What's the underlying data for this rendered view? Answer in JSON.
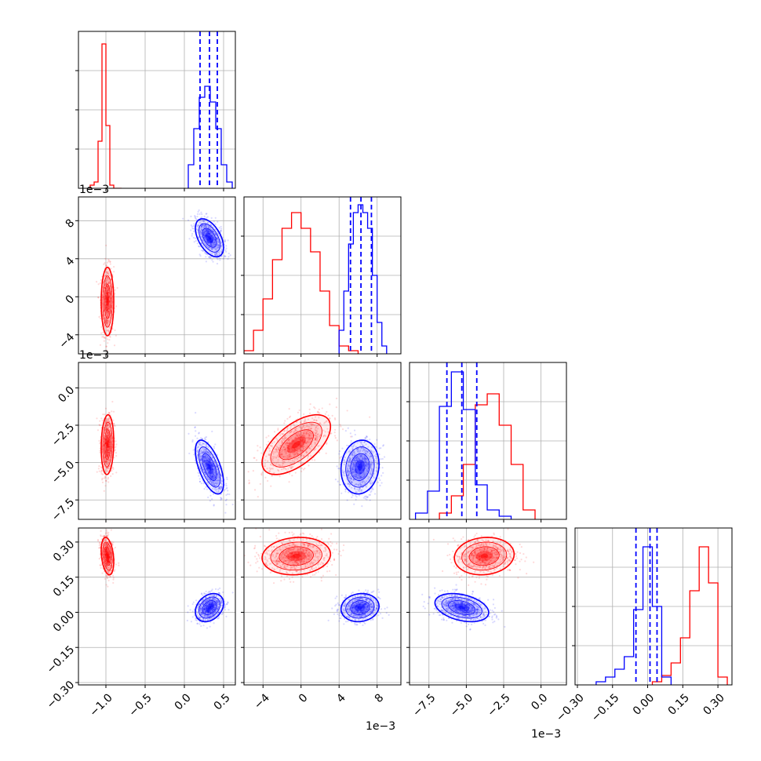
{
  "chart_data": {
    "type": "corner",
    "colors": {
      "series_a": "#ff0000",
      "series_b": "#0000ff",
      "grid": "#b0b0b0"
    },
    "params": [
      {
        "range": [
          -1.35,
          0.65
        ],
        "ticks": [
          -1.0,
          -0.5,
          0.0,
          0.5
        ],
        "tick_labels": [
          "−1.0",
          "−0.5",
          "0.0",
          "0.5"
        ],
        "offset_label": ""
      },
      {
        "range": [
          -6,
          10.5
        ],
        "ticks": [
          -4,
          0,
          4,
          8
        ],
        "tick_labels": [
          "−4",
          "0",
          "4",
          "8"
        ],
        "offset_label": "1e−3"
      },
      {
        "range": [
          -8.8,
          1.7
        ],
        "ticks": [
          -7.5,
          -5.0,
          -2.5,
          0.0
        ],
        "tick_labels": [
          "−7.5",
          "−5.0",
          "−2.5",
          "0.0"
        ],
        "offset_label": "1e−3"
      },
      {
        "range": [
          -0.31,
          0.36
        ],
        "ticks": [
          -0.3,
          -0.15,
          0.0,
          0.15,
          0.3
        ],
        "tick_labels": [
          "−0.30",
          "−0.15",
          "0.00",
          "0.15",
          "0.30"
        ],
        "offset_label": ""
      }
    ],
    "series": [
      {
        "color": "red",
        "mean": [
          -0.98,
          -0.0005,
          -0.0038,
          0.24
        ],
        "sd": [
          0.04,
          0.0018,
          0.001,
          0.04
        ],
        "corr": [
          [
            1,
            0,
            0.1,
            -0.3
          ],
          [
            0,
            1,
            0.6,
            0.1
          ],
          [
            0.1,
            0.6,
            1,
            0.1
          ],
          [
            -0.3,
            0.1,
            0.1,
            1
          ]
        ],
        "hist_1d": [
          {
            "bins": [
              -1.2,
              -1.15,
              -1.1,
              -1.05,
              -1.0,
              -0.95,
              -0.9,
              -0.85,
              -0.8
            ],
            "heights": [
              0.02,
              0.04,
              0.3,
              0.92,
              0.4,
              0.02,
              0.0,
              0.0
            ]
          },
          {
            "bins": [
              -0.006,
              -0.005,
              -0.004,
              -0.003,
              -0.002,
              -0.001,
              0.0,
              0.001,
              0.002,
              0.003,
              0.004,
              0.005,
              0.006
            ],
            "heights": [
              0.02,
              0.15,
              0.35,
              0.6,
              0.8,
              0.9,
              0.8,
              0.65,
              0.4,
              0.18,
              0.05,
              0.02
            ]
          },
          {
            "bins": [
              -0.0068,
              -0.006,
              -0.0052,
              -0.0044,
              -0.0036,
              -0.0028,
              -0.002,
              -0.0012,
              -0.0004
            ],
            "heights": [
              0.04,
              0.15,
              0.35,
              0.73,
              0.8,
              0.6,
              0.35,
              0.06
            ]
          },
          {
            "bins": [
              0.02,
              0.06,
              0.1,
              0.14,
              0.18,
              0.22,
              0.26,
              0.3,
              0.34
            ],
            "heights": [
              0.02,
              0.06,
              0.14,
              0.3,
              0.6,
              0.88,
              0.65,
              0.05
            ]
          }
        ]
      },
      {
        "color": "blue",
        "mean": [
          0.32,
          0.0062,
          -0.0053,
          0.02
        ],
        "sd": [
          0.09,
          0.001,
          0.0009,
          0.03
        ],
        "corr": [
          [
            1,
            -0.5,
            -0.6,
            0.3
          ],
          [
            -0.5,
            1,
            0.1,
            0.1
          ],
          [
            -0.6,
            0.1,
            1,
            -0.35
          ],
          [
            0.3,
            0.1,
            -0.35,
            1
          ]
        ],
        "quantile_lines": [
          [
            0.2,
            0.32,
            0.42
          ],
          [
            0.0052,
            0.0063,
            0.0074
          ],
          [
            -0.0063,
            -0.0053,
            -0.0043
          ],
          [
            -0.05,
            0.01,
            0.04
          ]
        ],
        "hist_1d": [
          {
            "bins": [
              0.05,
              0.12,
              0.19,
              0.26,
              0.33,
              0.4,
              0.47,
              0.54,
              0.61
            ],
            "heights": [
              0.15,
              0.38,
              0.58,
              0.65,
              0.55,
              0.38,
              0.15,
              0.04
            ]
          },
          {
            "bins": [
              0.004,
              0.0045,
              0.005,
              0.0055,
              0.006,
              0.0065,
              0.007,
              0.0075,
              0.008,
              0.0085,
              0.009
            ],
            "heights": [
              0.15,
              0.4,
              0.7,
              0.9,
              0.95,
              0.9,
              0.8,
              0.5,
              0.2,
              0.05
            ]
          },
          {
            "bins": [
              -0.0084,
              -0.0076,
              -0.0068,
              -0.006,
              -0.0052,
              -0.0044,
              -0.0036,
              -0.0028,
              -0.002
            ],
            "heights": [
              0.04,
              0.18,
              0.72,
              0.94,
              0.7,
              0.22,
              0.06,
              0.02
            ]
          },
          {
            "bins": [
              -0.22,
              -0.18,
              -0.14,
              -0.1,
              -0.06,
              -0.02,
              0.02,
              0.06,
              0.1
            ],
            "heights": [
              0.02,
              0.05,
              0.1,
              0.18,
              0.48,
              0.88,
              0.5,
              0.05
            ]
          }
        ]
      }
    ]
  }
}
